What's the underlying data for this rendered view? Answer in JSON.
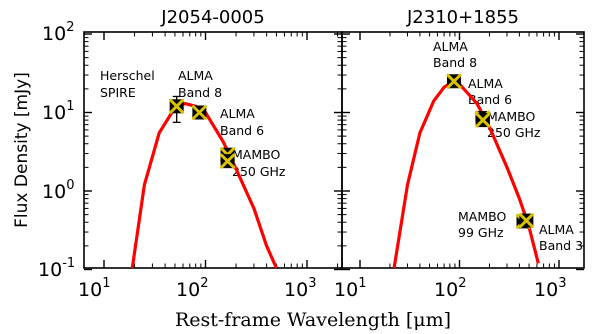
{
  "chart_data": [
    {
      "type": "scatter",
      "title": "J2054-0005",
      "ylabel": "Flux Density [mJy]",
      "xlabel": "Rest-frame Wavelength [μm]",
      "xscale": "log",
      "yscale": "log",
      "xlim": [
        10,
        3000
      ],
      "ylim": [
        0.1,
        100
      ],
      "points": [
        {
          "name": "Herschel SPIRE",
          "x": 52,
          "y": 12,
          "yerr": [
            7.5,
            16
          ]
        },
        {
          "name": "ALMA Band 8",
          "x": 87,
          "y": 10
        },
        {
          "name": "ALMA Band 6",
          "x": 165,
          "y": 2.9
        },
        {
          "name": "MAMBO 250 GHz",
          "x": 165,
          "y": 2.4
        }
      ],
      "model_curve": {
        "color": "#ff0000",
        "x": [
          19,
          25,
          35,
          50,
          63,
          80,
          100,
          150,
          200,
          300,
          400,
          500
        ],
        "y": [
          0.1,
          1.2,
          5.5,
          11.5,
          13,
          12,
          10,
          4.2,
          1.9,
          0.6,
          0.2,
          0.1
        ]
      }
    },
    {
      "type": "scatter",
      "title": "J2310+1855",
      "xscale": "log",
      "yscale": "log",
      "xlim": [
        10,
        3000
      ],
      "ylim": [
        0.1,
        100
      ],
      "points": [
        {
          "name": "ALMA Band 8",
          "x": 88,
          "y": 25
        },
        {
          "name": "ALMA Band 6",
          "x": 170,
          "y": 8.5
        },
        {
          "name": "MAMBO 250 GHz",
          "x": 172,
          "y": 8.0
        },
        {
          "name": "MAMBO 99 GHz",
          "x": 440,
          "y": 0.41
        },
        {
          "name": "ALMA Band 3",
          "x": 470,
          "y": 0.42
        }
      ],
      "model_curve": {
        "color": "#ff0000",
        "x": [
          22,
          30,
          40,
          55,
          70,
          85,
          100,
          150,
          200,
          300,
          400,
          500,
          620
        ],
        "y": [
          0.1,
          1.2,
          5.5,
          14,
          21,
          24.5,
          23,
          13,
          6.5,
          2,
          0.8,
          0.35,
          0.12
        ]
      }
    }
  ],
  "axes": {
    "y_ticks": [
      {
        "base": "10",
        "exp": "2"
      },
      {
        "base": "10",
        "exp": "1"
      },
      {
        "base": "10",
        "exp": "0"
      },
      {
        "base": "10",
        "exp": "-1"
      }
    ],
    "x_ticks": [
      {
        "base": "10",
        "exp": "1"
      },
      {
        "base": "10",
        "exp": "2"
      },
      {
        "base": "10",
        "exp": "3"
      }
    ]
  },
  "annotations": {
    "left": {
      "herschel": [
        "Herschel",
        "SPIRE"
      ],
      "alma8": [
        "ALMA",
        "Band 8"
      ],
      "alma6": [
        "ALMA",
        "Band 6"
      ],
      "mambo250": [
        "MAMBO",
        "250 GHz"
      ]
    },
    "right": {
      "alma8": [
        "ALMA",
        "Band 8"
      ],
      "alma6": [
        "ALMA",
        "Band 6"
      ],
      "mambo250": [
        "MAMBO",
        "250 GHz"
      ],
      "mambo99": [
        "MAMBO",
        "99 GHz"
      ],
      "alma3": [
        "ALMA",
        "Band 3"
      ]
    }
  }
}
